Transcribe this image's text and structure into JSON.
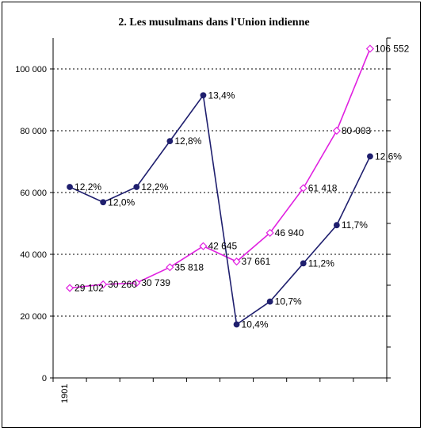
{
  "chart_data": {
    "type": "line",
    "title": "2. Les musulmans dans l'Union indienne",
    "x_tick_labels": [
      "1901"
    ],
    "categories_count": 10,
    "ylim": [
      0,
      110000
    ],
    "y_ticks": [
      "0",
      "20 000",
      "40 000",
      "60 000",
      "80 000",
      "100 000"
    ],
    "y_tick_values": [
      0,
      20000,
      40000,
      60000,
      80000,
      100000
    ],
    "grid": "dotted horizontal",
    "secondary_axis": "right, unlabeled",
    "colors": {
      "series_a": "#1f1f6e",
      "series_b": "#e020e0"
    },
    "series": [
      {
        "axis": "left",
        "values": [
          29102,
          30260,
          30739,
          35818,
          42645,
          37661,
          46940,
          61418,
          80003,
          106552
        ],
        "labels": [
          "29 102",
          "30 260",
          "30 739",
          "35 818",
          "42 645",
          "37 661",
          "46 940",
          "61 418",
          "80-003",
          "106 552"
        ]
      },
      {
        "axis": "right",
        "values": [
          12.2,
          12.0,
          12.2,
          12.8,
          13.4,
          10.4,
          10.7,
          11.2,
          11.7,
          12.6
        ],
        "labels": [
          "12,2%",
          "12,0%",
          "12,2%",
          "12,8%",
          "13,4%",
          "10,4%",
          "10,7%",
          "11,2%",
          "11,7%",
          "12,6%"
        ]
      }
    ]
  }
}
